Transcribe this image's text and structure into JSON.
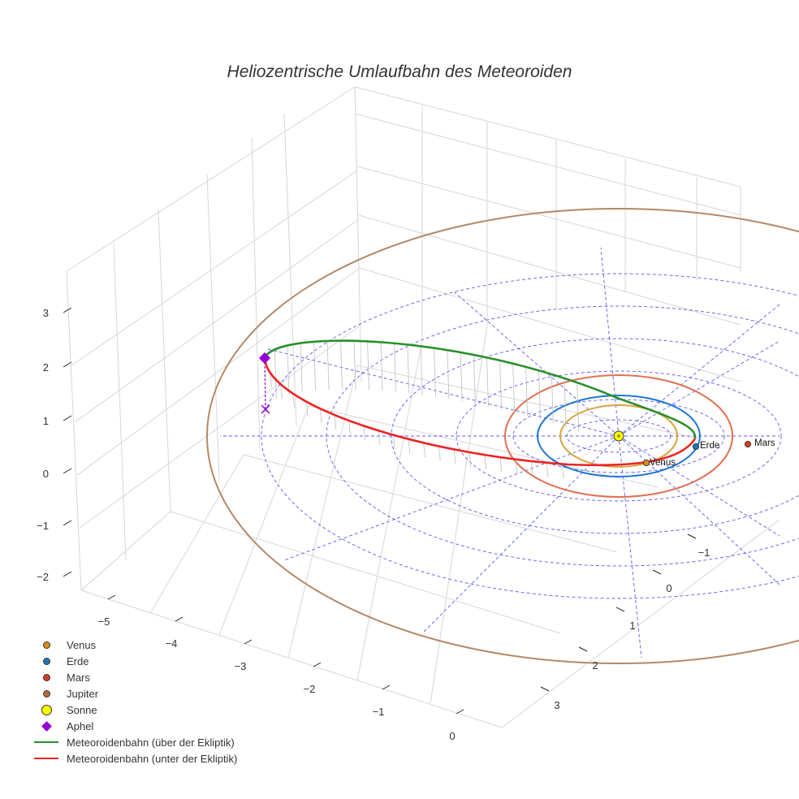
{
  "chart_data": {
    "type": "scatter3d",
    "title": "Heliozentrische Umlaufbahn des Meteoroiden",
    "axes": {
      "x": {
        "ticks": [
          "−5",
          "−4",
          "−3",
          "−2",
          "−1",
          "0"
        ]
      },
      "y": {
        "ticks": [
          "−1",
          "0",
          "1",
          "2",
          "3"
        ]
      },
      "z": {
        "ticks": [
          "3",
          "2",
          "1",
          "0",
          "−1",
          "−2"
        ]
      }
    },
    "planets": [
      {
        "name": "Venus",
        "label": "Venus",
        "color": "#d98c1f",
        "orbit_color": "#d9a441"
      },
      {
        "name": "Erde",
        "label": "Erde",
        "color": "#1f77b4",
        "orbit_color": "#1f77d4"
      },
      {
        "name": "Mars",
        "label": "Mars",
        "color": "#d1411f",
        "orbit_color": "#e07050"
      },
      {
        "name": "Jupiter",
        "color": "#b46a3c",
        "orbit_color": "#b48866"
      }
    ],
    "sun": {
      "name": "Sonne",
      "color": "#ffff00"
    },
    "aphel": {
      "name": "Aphel",
      "color": "#9400d3"
    },
    "series": [
      {
        "name": "Meteoroidenbahn (über der Ekliptik)",
        "color": "#2a8f2a"
      },
      {
        "name": "Meteoroidenbahn (unter der Ekliptik)",
        "color": "#ee2222"
      }
    ]
  },
  "legend": [
    {
      "label": "Venus",
      "kind": "dot",
      "color": "#d98c1f"
    },
    {
      "label": "Erde",
      "kind": "dot",
      "color": "#1f77b4"
    },
    {
      "label": "Mars",
      "kind": "dot",
      "color": "#d1411f"
    },
    {
      "label": "Jupiter",
      "kind": "dot",
      "color": "#b46a3c"
    },
    {
      "label": "Sonne",
      "kind": "bigdot",
      "color": "#ffff00"
    },
    {
      "label": "Aphel",
      "kind": "diamond",
      "color": "#9400d3"
    },
    {
      "label": "Meteoroidenbahn (über der Ekliptik)",
      "kind": "line",
      "color": "#2a8f2a"
    },
    {
      "label": "Meteoroidenbahn (unter der Ekliptik)",
      "kind": "line",
      "color": "#ee2222"
    }
  ]
}
